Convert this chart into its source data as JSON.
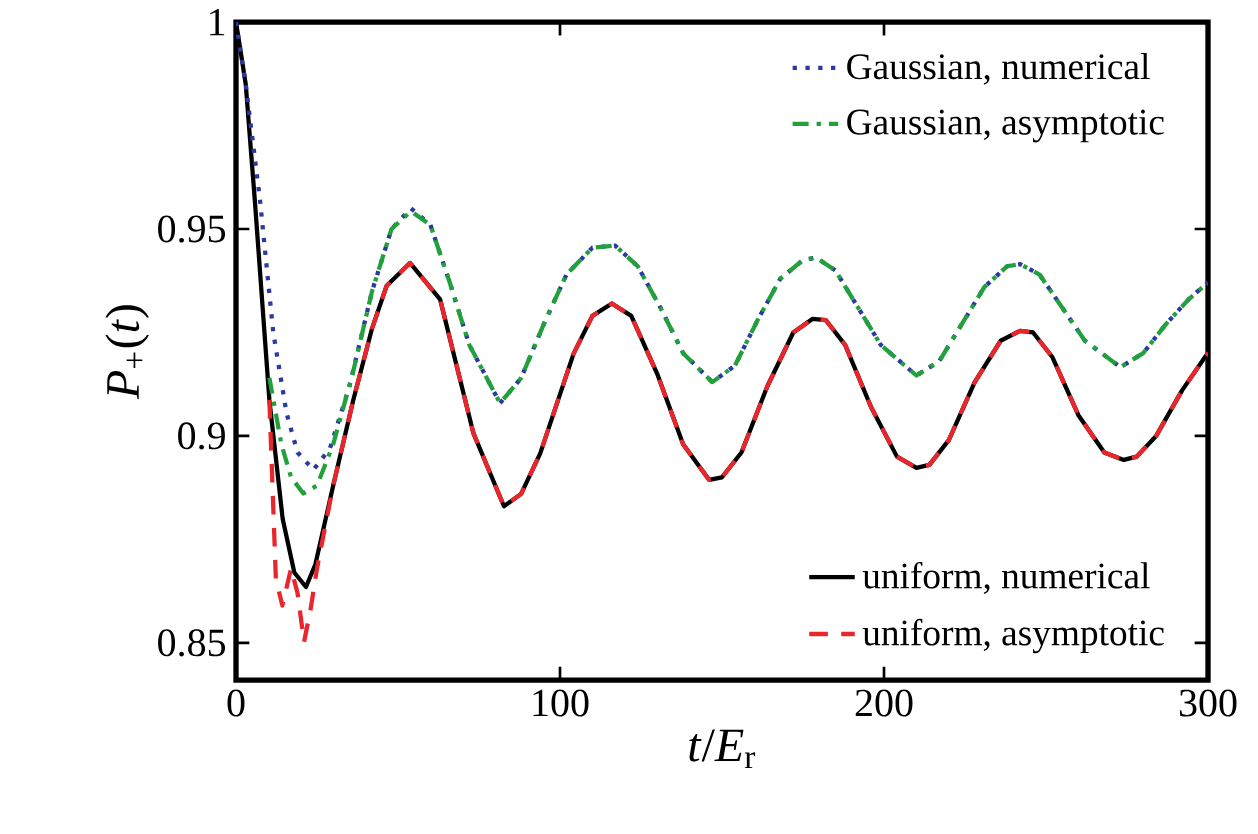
{
  "chart_data": {
    "type": "line",
    "xlabel": "*t*/*E*$_{r}$",
    "ylabel": "*P*$_{+}$(*t*)",
    "xlim": [
      0,
      300
    ],
    "ylim": [
      0.841,
      1
    ],
    "xticks": [
      0,
      100,
      200,
      300
    ],
    "yticks": [
      0.85,
      0.9,
      0.95,
      1
    ],
    "legend": "right",
    "marker": "none",
    "series": [
      {
        "name": "Gaussian,  numerical",
        "color": "#2b3a9e",
        "line_style": "dotted",
        "x": [
          0,
          3,
          7.4,
          11.5,
          15.6,
          19,
          23.9,
          29,
          35,
          42,
          48,
          54,
          60,
          66,
          72,
          81.5,
          88,
          95,
          102,
          110,
          117,
          124,
          131,
          138,
          147,
          154,
          161,
          168,
          175,
          179,
          185,
          192,
          199,
          210,
          217,
          224,
          231,
          238,
          242,
          248,
          255,
          262,
          273,
          280,
          287,
          294,
          300
        ],
        "values": [
          1,
          0.985,
          0.957,
          0.925,
          0.9055,
          0.896,
          0.8918,
          0.897,
          0.912,
          0.935,
          0.95,
          0.955,
          0.951,
          0.937,
          0.922,
          0.9079,
          0.914,
          0.927,
          0.939,
          0.9455,
          0.946,
          0.941,
          0.931,
          0.92,
          0.913,
          0.917,
          0.928,
          0.938,
          0.9425,
          0.9431,
          0.94,
          0.931,
          0.922,
          0.9146,
          0.918,
          0.927,
          0.936,
          0.941,
          0.9415,
          0.939,
          0.931,
          0.923,
          0.9166,
          0.92,
          0.927,
          0.933,
          0.9371
        ]
      },
      {
        "name": "Gaussian,  asymptotic",
        "color": "#22a03c",
        "line_style": "dashdot",
        "x": [
          10.3,
          14,
          17,
          20.8,
          25,
          30,
          36,
          42,
          48,
          54,
          60,
          66,
          72,
          81.5,
          88,
          95,
          102,
          110,
          117,
          124,
          131,
          138,
          147,
          154,
          161,
          168,
          175,
          179,
          185,
          192,
          199,
          210,
          217,
          224,
          231,
          238,
          242,
          248,
          255,
          262,
          273,
          280,
          287,
          294,
          300
        ],
        "values": [
          0.914,
          0.898,
          0.89,
          0.8861,
          0.888,
          0.898,
          0.915,
          0.935,
          0.95,
          0.9543,
          0.951,
          0.937,
          0.922,
          0.9079,
          0.914,
          0.927,
          0.939,
          0.9455,
          0.946,
          0.941,
          0.931,
          0.92,
          0.913,
          0.917,
          0.928,
          0.938,
          0.9425,
          0.9431,
          0.94,
          0.931,
          0.922,
          0.9146,
          0.918,
          0.927,
          0.936,
          0.941,
          0.9415,
          0.939,
          0.931,
          0.923,
          0.9166,
          0.92,
          0.927,
          0.933,
          0.9371
        ]
      },
      {
        "name": "uniform,  numerical",
        "color": "#000000",
        "line_style": "solid",
        "x": [
          0,
          3,
          5.8,
          10.3,
          14.4,
          18,
          21.6,
          24.5,
          30,
          36.2,
          42,
          46.5,
          53.7,
          63,
          73.3,
          82.7,
          88,
          93.9,
          104.2,
          110,
          116,
          122,
          130,
          138,
          146,
          150,
          156,
          164,
          172,
          178,
          182,
          188,
          196,
          204,
          210,
          214,
          220,
          228,
          236,
          242,
          246,
          252,
          260,
          268,
          274,
          278,
          284,
          292,
          300
        ],
        "values": [
          1,
          0.985,
          0.957,
          0.9087,
          0.88,
          0.867,
          0.8635,
          0.869,
          0.888,
          0.9087,
          0.926,
          0.9363,
          0.9418,
          0.933,
          0.9006,
          0.883,
          0.886,
          0.8958,
          0.9199,
          0.929,
          0.932,
          0.929,
          0.915,
          0.898,
          0.8894,
          0.89,
          0.896,
          0.912,
          0.925,
          0.9283,
          0.928,
          0.922,
          0.907,
          0.895,
          0.8923,
          0.893,
          0.899,
          0.913,
          0.923,
          0.9254,
          0.925,
          0.919,
          0.905,
          0.896,
          0.8942,
          0.895,
          0.9,
          0.911,
          0.9201
        ]
      },
      {
        "name": "uniform,  asymptotic",
        "color": "#e8262c",
        "line_style": "dashed",
        "x": [
          10.3,
          12.3,
          14.3,
          17,
          19,
          21,
          23,
          25,
          30,
          36.2,
          42,
          46.5,
          53.7,
          63,
          73.3,
          82.7,
          88,
          93.9,
          104.2,
          110,
          116,
          122,
          130,
          138,
          146,
          150,
          156,
          164,
          172,
          178,
          182,
          188,
          196,
          204,
          210,
          214,
          220,
          228,
          236,
          242,
          246,
          252,
          260,
          268,
          274,
          278,
          284,
          292,
          300
        ],
        "values": [
          0.9087,
          0.8655,
          0.859,
          0.868,
          0.862,
          0.8502,
          0.858,
          0.868,
          0.888,
          0.9087,
          0.926,
          0.9363,
          0.9418,
          0.933,
          0.9006,
          0.883,
          0.886,
          0.8958,
          0.9199,
          0.929,
          0.932,
          0.929,
          0.915,
          0.898,
          0.8894,
          0.89,
          0.896,
          0.912,
          0.925,
          0.9283,
          0.928,
          0.922,
          0.907,
          0.895,
          0.8923,
          0.893,
          0.899,
          0.913,
          0.923,
          0.9254,
          0.925,
          0.919,
          0.905,
          0.896,
          0.8942,
          0.895,
          0.9,
          0.911,
          0.9201
        ]
      }
    ]
  }
}
